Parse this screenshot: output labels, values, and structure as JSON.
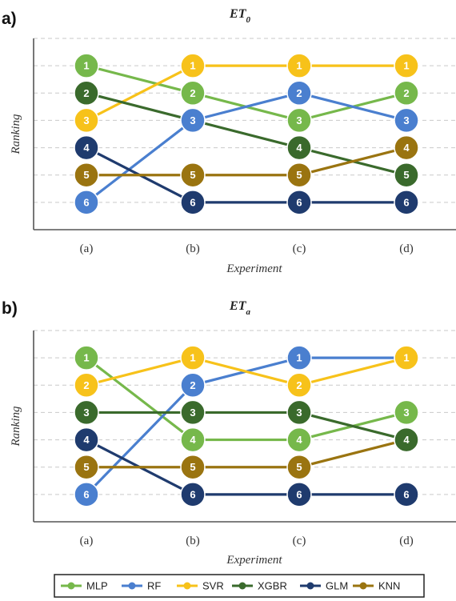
{
  "colors": {
    "MLP": "#76b84b",
    "RF": "#4a7fcf",
    "SVR": "#f7c21a",
    "XGBR": "#3a6a2c",
    "GLM": "#1f3b6e",
    "KNN": "#9a7410"
  },
  "legend": [
    "MLP",
    "RF",
    "SVR",
    "XGBR",
    "GLM",
    "KNN"
  ],
  "chart_data": [
    {
      "type": "line",
      "panel_label": "a)",
      "title_main": "ET",
      "title_sub": "0",
      "xlabel": "Experiment",
      "ylabel": "Ranking",
      "categories": [
        "(a)",
        "(b)",
        "(c)",
        "(d)"
      ],
      "ylim": [
        0.0,
        7.0
      ],
      "y_inverted": true,
      "grid": true,
      "series": [
        {
          "name": "MLP",
          "values": [
            1,
            2,
            3,
            2
          ]
        },
        {
          "name": "RF",
          "values": [
            6,
            3,
            2,
            3
          ]
        },
        {
          "name": "SVR",
          "values": [
            3,
            1,
            1,
            1
          ]
        },
        {
          "name": "XGBR",
          "values": [
            2,
            3,
            4,
            5
          ]
        },
        {
          "name": "GLM",
          "values": [
            4,
            6,
            6,
            6
          ]
        },
        {
          "name": "KNN",
          "values": [
            5,
            5,
            5,
            4
          ]
        }
      ]
    },
    {
      "type": "line",
      "panel_label": "b)",
      "title_main": "ET",
      "title_sub": "a",
      "xlabel": "Experiment",
      "ylabel": "Ranking",
      "categories": [
        "(a)",
        "(b)",
        "(c)",
        "(d)"
      ],
      "ylim": [
        0.0,
        7.0
      ],
      "y_inverted": true,
      "grid": true,
      "series": [
        {
          "name": "MLP",
          "values": [
            1,
            4,
            4,
            3
          ]
        },
        {
          "name": "RF",
          "values": [
            6,
            2,
            1,
            1
          ]
        },
        {
          "name": "SVR",
          "values": [
            2,
            1,
            2,
            1
          ]
        },
        {
          "name": "XGBR",
          "values": [
            3,
            3,
            3,
            4
          ]
        },
        {
          "name": "GLM",
          "values": [
            4,
            6,
            6,
            6
          ]
        },
        {
          "name": "KNN",
          "values": [
            5,
            5,
            5,
            4
          ]
        }
      ]
    }
  ]
}
